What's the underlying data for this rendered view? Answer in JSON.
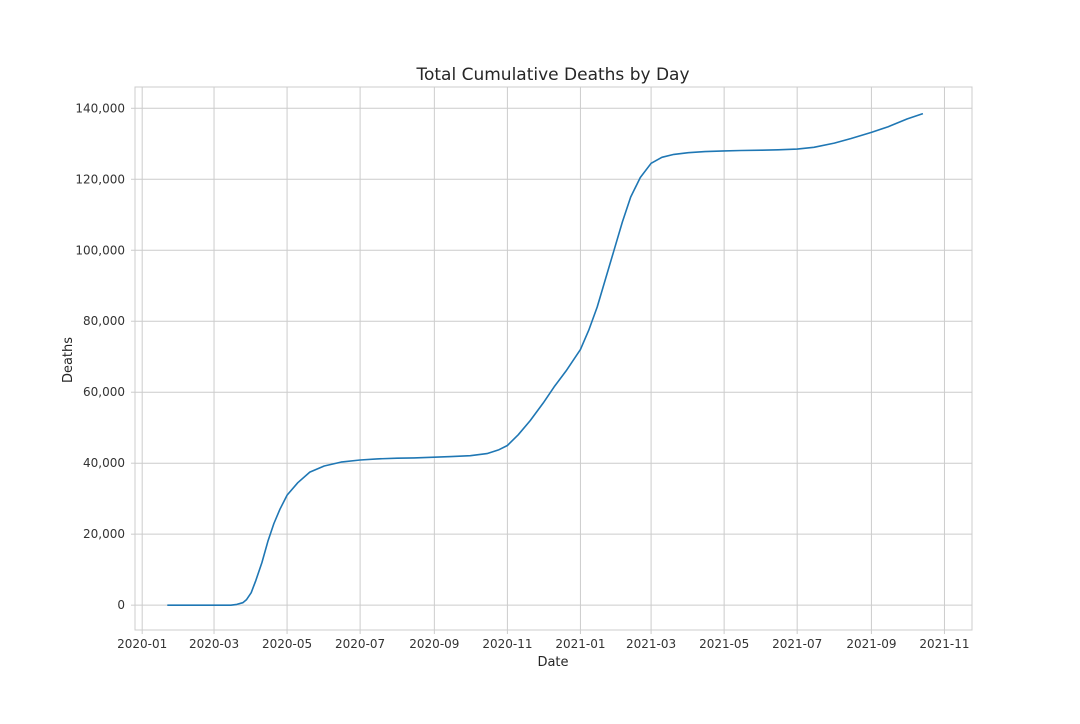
{
  "chart_data": {
    "type": "line",
    "title": "Total Cumulative Deaths by Day",
    "xlabel": "Date",
    "ylabel": "Deaths",
    "grid": true,
    "legend": "none",
    "x_ticks": [
      "2020-01",
      "2020-03",
      "2020-05",
      "2020-07",
      "2020-09",
      "2020-11",
      "2021-01",
      "2021-03",
      "2021-05",
      "2021-07",
      "2021-09",
      "2021-11"
    ],
    "y_ticks": [
      0,
      20000,
      40000,
      60000,
      80000,
      100000,
      120000,
      140000
    ],
    "y_tick_labels": [
      "0",
      "20,000",
      "40,000",
      "60,000",
      "80,000",
      "100,000",
      "120,000",
      "140,000"
    ],
    "xlim": [
      "2019-12-26",
      "2021-11-24"
    ],
    "ylim": [
      -7000,
      146000
    ],
    "line_color": "#1f77b4",
    "series": [
      {
        "x": [
          "2020-01-22",
          "2020-02-15",
          "2020-03-01",
          "2020-03-15",
          "2020-03-20",
          "2020-03-25",
          "2020-03-28",
          "2020-04-01",
          "2020-04-05",
          "2020-04-10",
          "2020-04-15",
          "2020-04-20",
          "2020-04-25",
          "2020-05-01",
          "2020-05-10",
          "2020-05-20",
          "2020-06-01",
          "2020-06-15",
          "2020-07-01",
          "2020-07-15",
          "2020-08-01",
          "2020-08-15",
          "2020-09-01",
          "2020-09-15",
          "2020-10-01",
          "2020-10-15",
          "2020-10-25",
          "2020-11-01",
          "2020-11-10",
          "2020-11-20",
          "2020-12-01",
          "2020-12-10",
          "2020-12-20",
          "2021-01-01",
          "2021-01-08",
          "2021-01-15",
          "2021-01-22",
          "2021-01-29",
          "2021-02-05",
          "2021-02-12",
          "2021-02-20",
          "2021-03-01",
          "2021-03-10",
          "2021-03-20",
          "2021-04-01",
          "2021-04-15",
          "2021-05-01",
          "2021-05-15",
          "2021-06-01",
          "2021-06-15",
          "2021-07-01",
          "2021-07-15",
          "2021-08-01",
          "2021-08-15",
          "2021-09-01",
          "2021-09-15",
          "2021-10-01",
          "2021-10-14"
        ],
        "values": [
          0,
          0,
          0,
          0,
          200,
          700,
          1500,
          3500,
          7000,
          12000,
          18000,
          23000,
          27000,
          31000,
          34500,
          37500,
          39200,
          40300,
          40900,
          41200,
          41400,
          41500,
          41700,
          41850,
          42100,
          42700,
          43800,
          45000,
          48000,
          52000,
          57000,
          61500,
          66000,
          72000,
          77500,
          84000,
          92000,
          100000,
          108000,
          115000,
          120500,
          124500,
          126200,
          127000,
          127500,
          127800,
          128000,
          128100,
          128200,
          128300,
          128500,
          129000,
          130200,
          131500,
          133200,
          134800,
          137000,
          138500
        ]
      }
    ]
  }
}
